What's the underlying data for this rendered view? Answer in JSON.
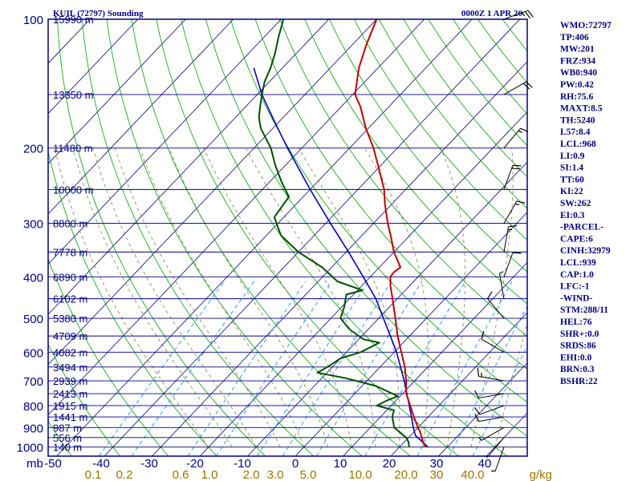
{
  "chart_data": {
    "type": "line",
    "title": "KUIL (72797) Sounding",
    "date_label": "0000Z  1 APR 20",
    "axis_pressure_unit": "mb",
    "axis_mixing_unit": "g/kg",
    "pressure_ticks": [
      {
        "p": 100,
        "label": "100"
      },
      {
        "p": 200,
        "label": "200"
      },
      {
        "p": 300,
        "label": "300"
      },
      {
        "p": 400,
        "label": "400"
      },
      {
        "p": 500,
        "label": "500"
      },
      {
        "p": 600,
        "label": "600"
      },
      {
        "p": 700,
        "label": "700"
      },
      {
        "p": 800,
        "label": "800"
      },
      {
        "p": 900,
        "label": "900"
      },
      {
        "p": 1000,
        "label": "1000"
      }
    ],
    "temperature_ticks": [
      "-50",
      "-40",
      "-30",
      "-20",
      "-10",
      "0",
      "10",
      "20",
      "30",
      "40"
    ],
    "mixing_ratio_ticks": [
      "0.1",
      "0.2",
      "0.6",
      "1.0",
      "2.0",
      "3.0",
      "5.0",
      "10.0",
      "20.0",
      "30",
      "40.0"
    ],
    "height_levels": [
      {
        "p": 100,
        "label": "15990 m"
      },
      {
        "p": 150,
        "label": "13350 m"
      },
      {
        "p": 200,
        "label": "11480 m"
      },
      {
        "p": 250,
        "label": "10000 m"
      },
      {
        "p": 300,
        "label": "8800 m"
      },
      {
        "p": 350,
        "label": "7778 m"
      },
      {
        "p": 400,
        "label": "6890 m"
      },
      {
        "p": 450,
        "label": "6102 m"
      },
      {
        "p": 500,
        "label": "5380 m"
      },
      {
        "p": 550,
        "label": "4709 m"
      },
      {
        "p": 600,
        "label": "4082 m"
      },
      {
        "p": 650,
        "label": "3494 m"
      },
      {
        "p": 700,
        "label": "2939 m"
      },
      {
        "p": 750,
        "label": "2413 m"
      },
      {
        "p": 800,
        "label": "1915 m"
      },
      {
        "p": 850,
        "label": "1441 m"
      },
      {
        "p": 900,
        "label": "987 m"
      },
      {
        "p": 950,
        "label": "556 m"
      },
      {
        "p": 1000,
        "label": "140 m"
      }
    ],
    "temperature": [
      {
        "p": 1000,
        "t": 25.5
      },
      {
        "p": 975,
        "t": 24.0
      },
      {
        "p": 950,
        "t": 22.8
      },
      {
        "p": 925,
        "t": 21.5
      },
      {
        "p": 900,
        "t": 20.0
      },
      {
        "p": 850,
        "t": 17.0
      },
      {
        "p": 800,
        "t": 14.0
      },
      {
        "p": 750,
        "t": 10.8
      },
      {
        "p": 700,
        "t": 8.2
      },
      {
        "p": 650,
        "t": 5.2
      },
      {
        "p": 600,
        "t": 1.5
      },
      {
        "p": 550,
        "t": -2.5
      },
      {
        "p": 500,
        "t": -6.5
      },
      {
        "p": 450,
        "t": -11.0
      },
      {
        "p": 420,
        "t": -14.0
      },
      {
        "p": 400,
        "t": -15.8
      },
      {
        "p": 390,
        "t": -16.0
      },
      {
        "p": 380,
        "t": -15.6
      },
      {
        "p": 350,
        "t": -20.0
      },
      {
        "p": 320,
        "t": -24.0
      },
      {
        "p": 300,
        "t": -27.0
      },
      {
        "p": 270,
        "t": -31.5
      },
      {
        "p": 250,
        "t": -34.5
      },
      {
        "p": 220,
        "t": -40.5
      },
      {
        "p": 200,
        "t": -45.0
      },
      {
        "p": 180,
        "t": -50.5
      },
      {
        "p": 160,
        "t": -56.0
      },
      {
        "p": 150,
        "t": -59.5
      },
      {
        "p": 130,
        "t": -64.0
      },
      {
        "p": 115,
        "t": -67.0
      },
      {
        "p": 100,
        "t": -70.0
      }
    ],
    "dewpoint": [
      {
        "p": 1000,
        "t": 22.0
      },
      {
        "p": 975,
        "t": 21.0
      },
      {
        "p": 950,
        "t": 19.5
      },
      {
        "p": 900,
        "t": 15.0
      },
      {
        "p": 850,
        "t": 12.5
      },
      {
        "p": 820,
        "t": 11.5
      },
      {
        "p": 800,
        "t": 7.0
      },
      {
        "p": 780,
        "t": 8.0
      },
      {
        "p": 760,
        "t": 9.5
      },
      {
        "p": 720,
        "t": 3.0
      },
      {
        "p": 690,
        "t": -5.0
      },
      {
        "p": 670,
        "t": -12.0
      },
      {
        "p": 650,
        "t": -11.0
      },
      {
        "p": 620,
        "t": -10.0
      },
      {
        "p": 600,
        "t": -7.0
      },
      {
        "p": 570,
        "t": -5.0
      },
      {
        "p": 560,
        "t": -9.0
      },
      {
        "p": 530,
        "t": -14.0
      },
      {
        "p": 500,
        "t": -18.0
      },
      {
        "p": 470,
        "t": -19.5
      },
      {
        "p": 440,
        "t": -21.5
      },
      {
        "p": 430,
        "t": -19.0
      },
      {
        "p": 410,
        "t": -26.0
      },
      {
        "p": 380,
        "t": -32.0
      },
      {
        "p": 350,
        "t": -40.0
      },
      {
        "p": 320,
        "t": -47.0
      },
      {
        "p": 290,
        "t": -52.0
      },
      {
        "p": 260,
        "t": -53.0
      },
      {
        "p": 240,
        "t": -57.5
      },
      {
        "p": 220,
        "t": -62.0
      },
      {
        "p": 200,
        "t": -66.5
      },
      {
        "p": 180,
        "t": -72.5
      },
      {
        "p": 170,
        "t": -75.0
      },
      {
        "p": 160,
        "t": -77.0
      },
      {
        "p": 150,
        "t": -79.0
      },
      {
        "p": 140,
        "t": -81.0
      },
      {
        "p": 130,
        "t": -82.5
      },
      {
        "p": 120,
        "t": -84.5
      },
      {
        "p": 110,
        "t": -87.0
      },
      {
        "p": 100,
        "t": -89.5
      }
    ],
    "parcel": [
      {
        "p": 1000,
        "t": 26.0
      },
      {
        "p": 939,
        "t": 21.0
      },
      {
        "p": 900,
        "t": 19.0
      },
      {
        "p": 850,
        "t": 16.5
      },
      {
        "p": 800,
        "t": 13.8
      },
      {
        "p": 700,
        "t": 7.8
      },
      {
        "p": 600,
        "t": 0.5
      },
      {
        "p": 500,
        "t": -9.0
      },
      {
        "p": 450,
        "t": -14.5
      },
      {
        "p": 400,
        "t": -21.5
      },
      {
        "p": 350,
        "t": -29.5
      },
      {
        "p": 300,
        "t": -39.0
      },
      {
        "p": 250,
        "t": -50.0
      },
      {
        "p": 200,
        "t": -63.0
      },
      {
        "p": 175,
        "t": -70.5
      },
      {
        "p": 150,
        "t": -79.0
      },
      {
        "p": 130,
        "t": -86.0
      }
    ],
    "wind_barbs": [
      {
        "p": 1000,
        "dir": 200,
        "spd": 5
      },
      {
        "p": 950,
        "dir": 220,
        "spd": 5
      },
      {
        "p": 900,
        "dir": 240,
        "spd": 5
      },
      {
        "p": 850,
        "dir": 260,
        "spd": 10
      },
      {
        "p": 800,
        "dir": 250,
        "spd": 10
      },
      {
        "p": 750,
        "dir": 260,
        "spd": 10
      },
      {
        "p": 700,
        "dir": 280,
        "spd": 15
      },
      {
        "p": 600,
        "dir": 300,
        "spd": 10
      },
      {
        "p": 500,
        "dir": 320,
        "spd": 10
      },
      {
        "p": 450,
        "dir": 350,
        "spd": 5
      },
      {
        "p": 400,
        "dir": 20,
        "spd": 10
      },
      {
        "p": 350,
        "dir": 10,
        "spd": 15
      },
      {
        "p": 300,
        "dir": 30,
        "spd": 15
      },
      {
        "p": 250,
        "dir": 20,
        "spd": 20
      },
      {
        "p": 200,
        "dir": 40,
        "spd": 15
      },
      {
        "p": 150,
        "dir": 60,
        "spd": 20
      },
      {
        "p": 100,
        "dir": 70,
        "spd": 25
      }
    ],
    "indices": [
      "WMO:72797",
      "TP:406",
      "MW:201",
      "FRZ:934",
      "WB0:940",
      "PW:0.42",
      "RH:75.6",
      "MAXT:8.5",
      "TH:5240",
      "L57:8.4",
      "LCL:968",
      "LI:0.9",
      "SI:1.4",
      "TT:60",
      "KI:22",
      "SW:262",
      "EI:0.3",
      "-PARCEL-",
      "CAPE:6",
      "CINH:32979",
      "LCL:939",
      "CAP:1.0",
      "LFC:-1",
      "-WIND-",
      "STM:288/11",
      "HEL:76",
      "SHR+:0.0",
      "SRDS:86",
      "EHI:0.0",
      "BRN:0.3",
      "BSHR:22"
    ],
    "colors": {
      "frame": "#000080",
      "isobar": "#000080",
      "isotherm": "#000080",
      "dry_adiabat": "#00a000",
      "moist_adiabat": "#808040",
      "mixing_ratio": "#2090ff",
      "temperature": "#c00000",
      "dewpoint": "#005000",
      "parcel": "#0000c0",
      "labels": "#000080",
      "mixing_labels": "#a07000",
      "barbs": "#000000"
    }
  }
}
